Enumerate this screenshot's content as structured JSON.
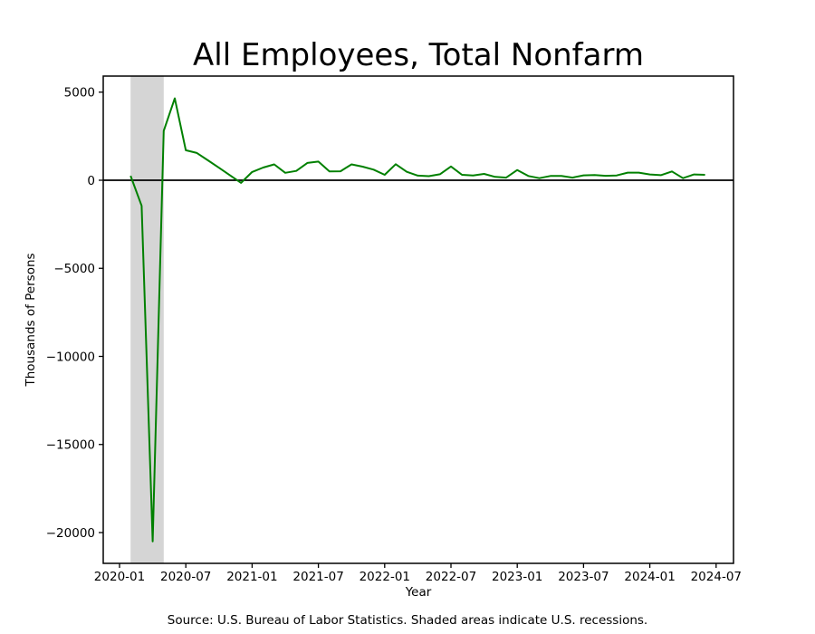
{
  "figure": {
    "title": "All Employees, Total Nonfarm",
    "xlabel": "Year",
    "ylabel": "Thousands of Persons",
    "source_note": "Source: U.S. Bureau of Labor Statistics. Shaded areas indicate U.S. recessions."
  },
  "chart_data": {
    "type": "line",
    "title": "All Employees, Total Nonfarm",
    "xlabel": "Year",
    "ylabel": "Thousands of Persons",
    "grid": false,
    "legend": "none",
    "background": "#ffffff",
    "line_color": "#008000",
    "line_width": 2,
    "zero_line": true,
    "zero_line_color": "#000000",
    "recession_band_color": "#d5d5d5",
    "recession_bands": [
      {
        "start": "2020-02",
        "end": "2020-05"
      }
    ],
    "x_ticks": [
      "2020-01",
      "2020-07",
      "2021-01",
      "2021-07",
      "2022-01",
      "2022-07",
      "2023-01",
      "2023-07",
      "2024-01",
      "2024-07"
    ],
    "y_ticks": [
      5000,
      0,
      -5000,
      -10000,
      -15000,
      -20000
    ],
    "ylim": [
      -21750,
      5900
    ],
    "xlim": [
      "2019-11",
      "2024-08"
    ],
    "series": [
      {
        "color": "#008000",
        "x": [
          "2020-02",
          "2020-03",
          "2020-04",
          "2020-05",
          "2020-06",
          "2020-07",
          "2020-08",
          "2020-09",
          "2020-10",
          "2020-11",
          "2020-12",
          "2021-01",
          "2021-02",
          "2021-03",
          "2021-04",
          "2021-05",
          "2021-06",
          "2021-07",
          "2021-08",
          "2021-09",
          "2021-10",
          "2021-11",
          "2021-12",
          "2022-01",
          "2022-02",
          "2022-03",
          "2022-04",
          "2022-05",
          "2022-06",
          "2022-07",
          "2022-08",
          "2022-09",
          "2022-10",
          "2022-11",
          "2022-12",
          "2023-01",
          "2023-02",
          "2023-03",
          "2023-04",
          "2023-05",
          "2023-06",
          "2023-07",
          "2023-08",
          "2023-09",
          "2023-10",
          "2023-11",
          "2023-12",
          "2024-01",
          "2024-02",
          "2024-03",
          "2024-04",
          "2024-05",
          "2024-06"
        ],
        "values": [
          250,
          -1450,
          -20500,
          2800,
          4650,
          1700,
          1550,
          1130,
          710,
          280,
          -150,
          470,
          720,
          900,
          420,
          530,
          980,
          1060,
          500,
          510,
          900,
          770,
          600,
          310,
          910,
          480,
          260,
          230,
          340,
          780,
          310,
          270,
          360,
          190,
          150,
          580,
          240,
          120,
          240,
          240,
          150,
          280,
          300,
          250,
          270,
          430,
          430,
          330,
          290,
          500,
          120,
          330,
          310
        ]
      }
    ]
  }
}
